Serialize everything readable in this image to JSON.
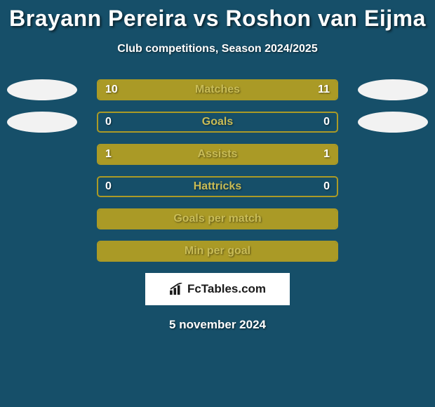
{
  "background_color": "#164f69",
  "title": "Brayann Pereira vs Roshon van Eijma",
  "title_color": "#ffffff",
  "title_fontsize": 32,
  "subtitle": "Club competitions, Season 2024/2025",
  "subtitle_color": "#ffffff",
  "subtitle_fontsize": 16,
  "accent_color": "#aa9a26",
  "ellipse_color": "#f2f2f2",
  "label_text_color": "#c9bc56",
  "value_text_color": "#ffffff",
  "rows": [
    {
      "label": "Matches",
      "left": "10",
      "right": "11",
      "left_width_pct": 48,
      "right_width_pct": 52,
      "ellipses": true,
      "values": true
    },
    {
      "label": "Goals",
      "left": "0",
      "right": "0",
      "left_width_pct": 0,
      "right_width_pct": 0,
      "ellipses": true,
      "values": true
    },
    {
      "label": "Assists",
      "left": "1",
      "right": "1",
      "left_width_pct": 50,
      "right_width_pct": 50,
      "ellipses": false,
      "values": true
    },
    {
      "label": "Hattricks",
      "left": "0",
      "right": "0",
      "left_width_pct": 0,
      "right_width_pct": 0,
      "ellipses": false,
      "values": true
    },
    {
      "label": "Goals per match",
      "left": "",
      "right": "",
      "left_width_pct": 100,
      "right_width_pct": 0,
      "ellipses": false,
      "values": false
    },
    {
      "label": "Min per goal",
      "left": "",
      "right": "",
      "left_width_pct": 100,
      "right_width_pct": 0,
      "ellipses": false,
      "values": false
    }
  ],
  "brand": {
    "text": "FcTables.com",
    "background": "#ffffff",
    "text_color": "#1a1a1a",
    "icon_color": "#1a1a1a"
  },
  "date_text": "5 november 2024",
  "date_color": "#ffffff"
}
